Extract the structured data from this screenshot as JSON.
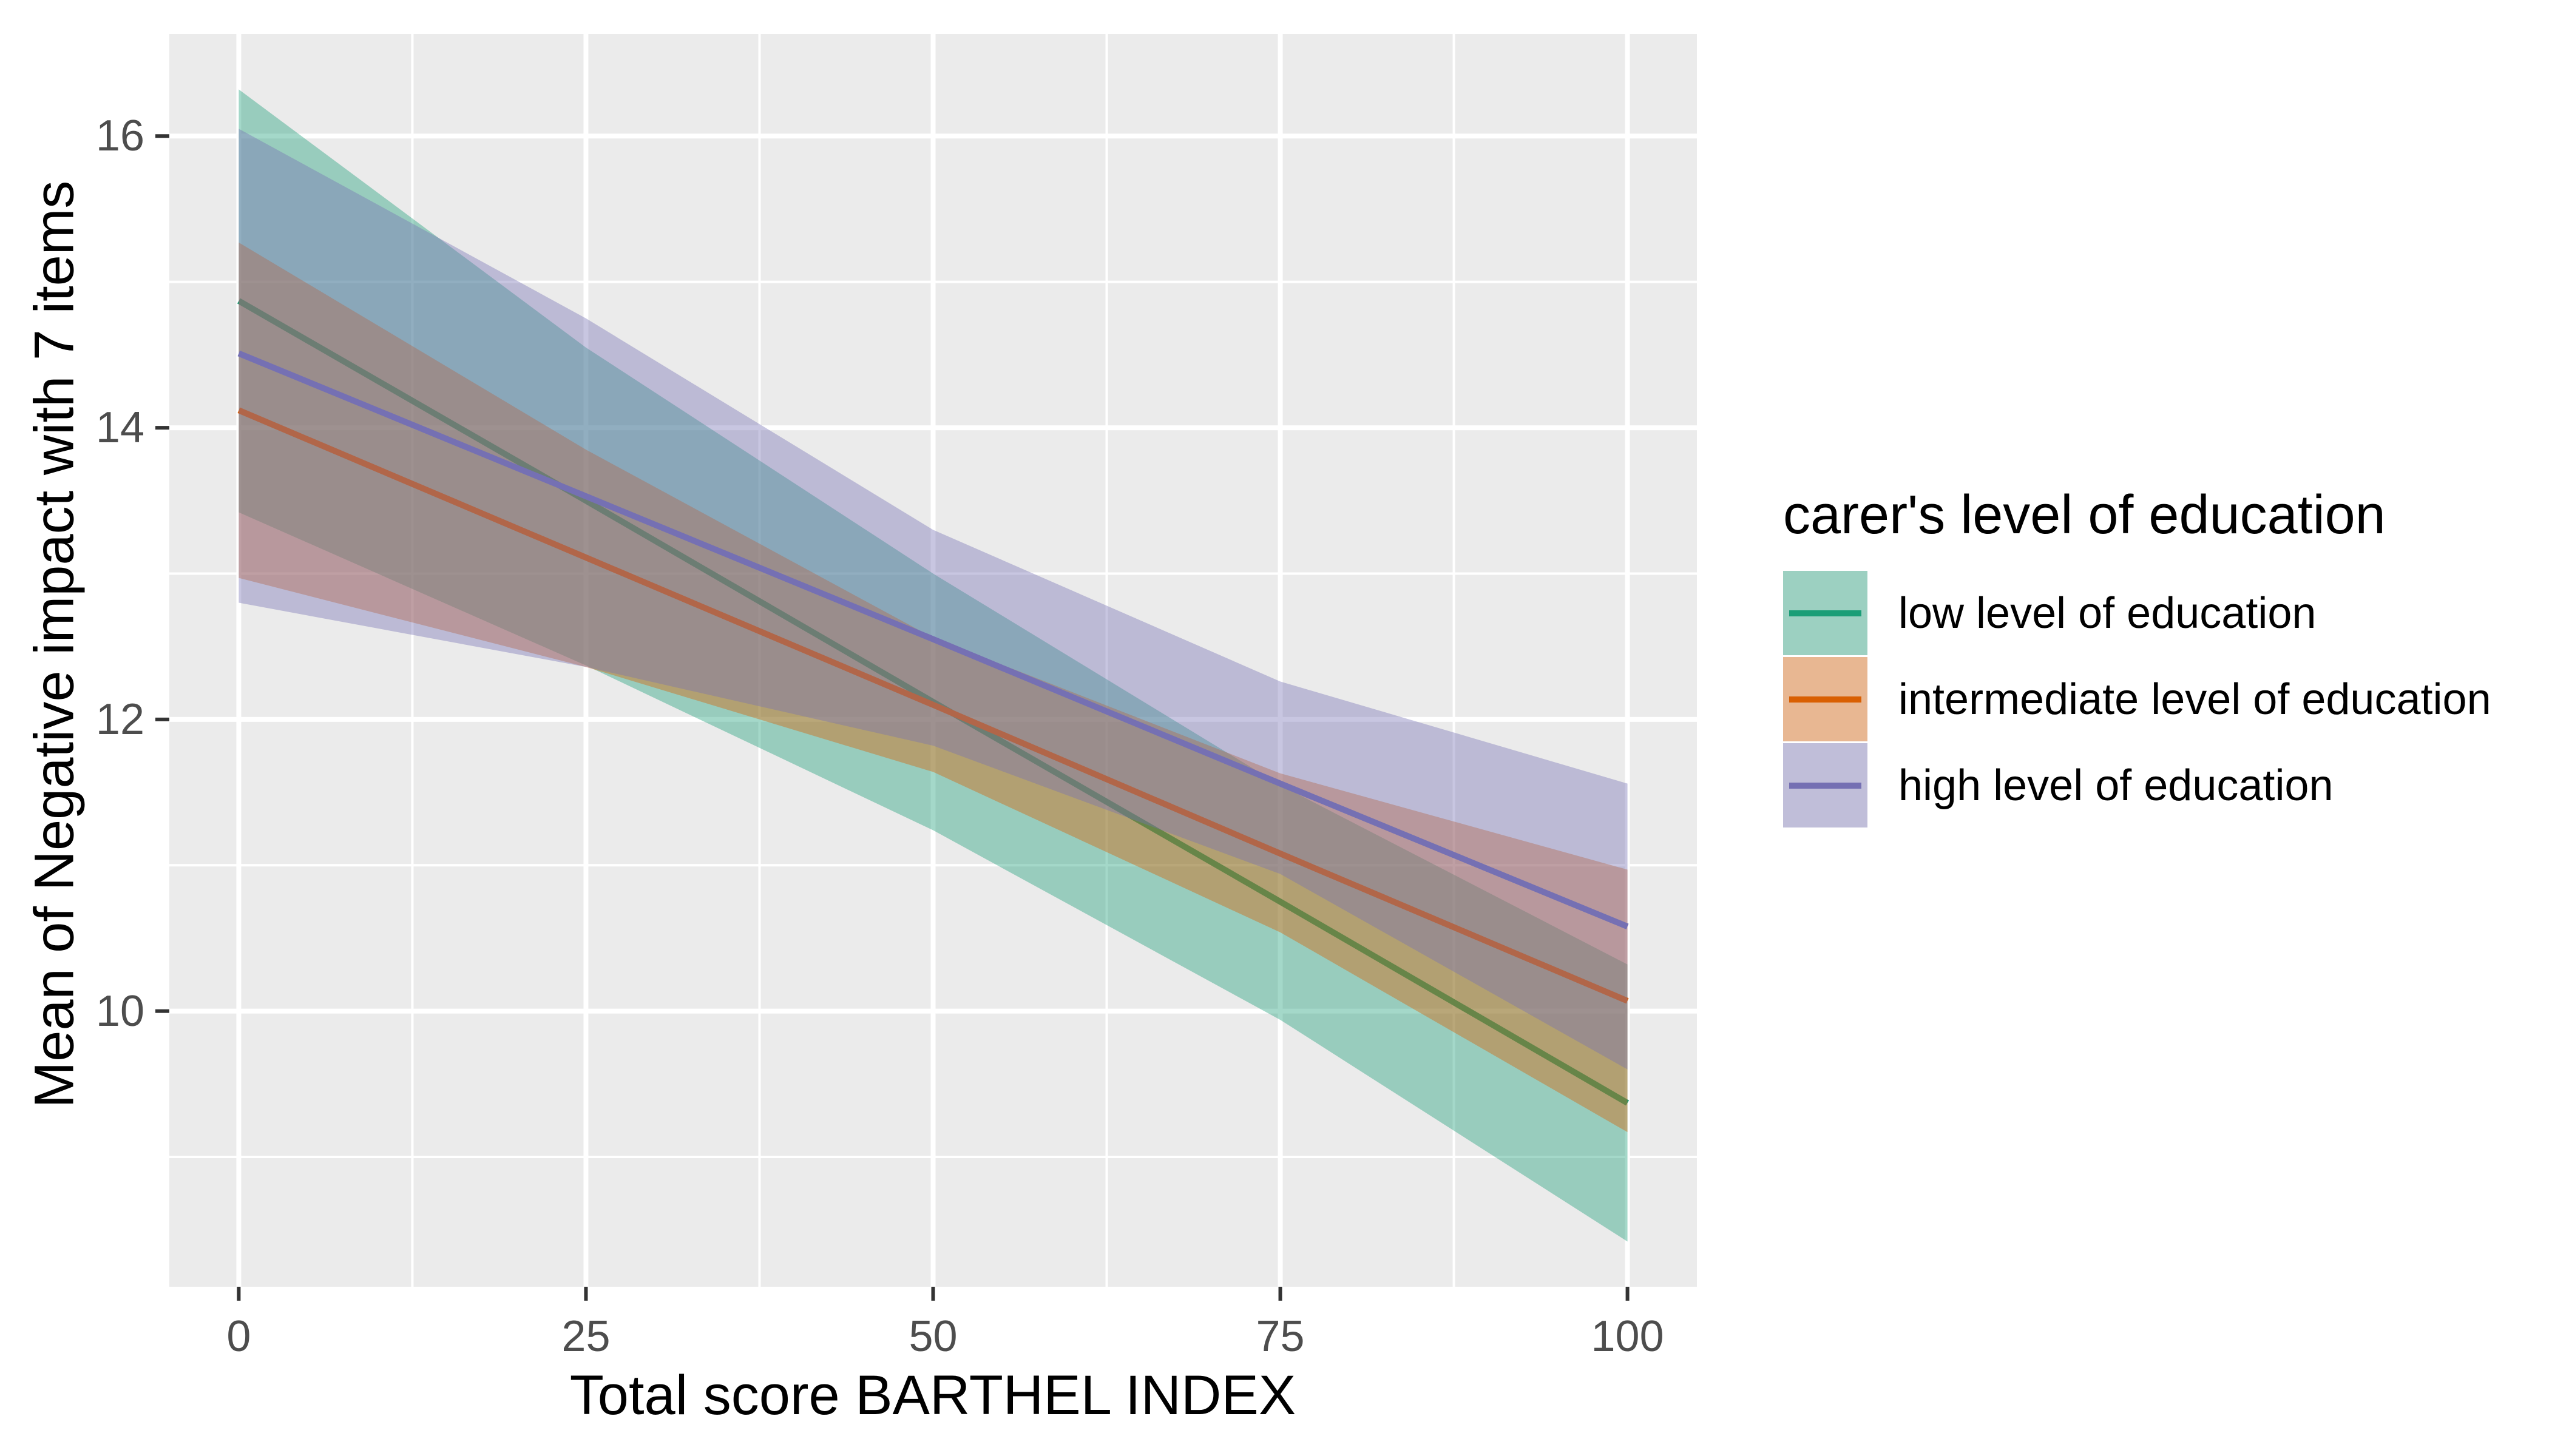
{
  "chart_data": {
    "type": "line",
    "title": "",
    "xlabel": "Total score BARTHEL INDEX",
    "ylabel": "Mean of Negative impact with 7 items",
    "legend_title": "carer's level of education",
    "legend_position": "right",
    "x": [
      0,
      25,
      50,
      75,
      100
    ],
    "series": [
      {
        "name": "low level of education",
        "color": "#1B9E77",
        "fill": "rgba(27,158,119,0.4)",
        "line": [
          14.87,
          13.5,
          12.12,
          10.75,
          9.37
        ],
        "ci_upper": [
          16.32,
          14.55,
          13.0,
          11.55,
          10.32
        ],
        "ci_lower": [
          13.42,
          12.37,
          11.24,
          9.94,
          8.42
        ]
      },
      {
        "name": "intermediate level of education",
        "color": "#D95F02",
        "fill": "rgba(217,95,2,0.4)",
        "line": [
          14.12,
          13.11,
          12.1,
          11.08,
          10.07
        ],
        "ci_upper": [
          15.27,
          13.85,
          12.56,
          11.63,
          10.97
        ],
        "ci_lower": [
          12.97,
          12.36,
          11.64,
          10.54,
          9.17
        ]
      },
      {
        "name": "high level of education",
        "color": "#7570B3",
        "fill": "rgba(117,112,179,0.4)",
        "line": [
          14.51,
          13.53,
          12.55,
          11.56,
          10.58
        ],
        "ci_upper": [
          16.05,
          14.75,
          13.3,
          12.26,
          11.56
        ],
        "ci_lower": [
          12.8,
          12.36,
          11.82,
          10.94,
          9.6
        ]
      }
    ],
    "x_ticks": [
      0,
      25,
      50,
      75,
      100
    ],
    "x_tick_labels": [
      "0",
      "25",
      "50",
      "75",
      "100"
    ],
    "x_minor_ticks": [
      12.5,
      37.5,
      62.5,
      87.5
    ],
    "y_ticks": [
      10,
      12,
      14,
      16
    ],
    "y_tick_labels": [
      "10",
      "12",
      "14",
      "16"
    ],
    "y_minor_ticks": [
      9,
      11,
      13,
      15
    ],
    "xlim": [
      -5,
      105
    ],
    "ylim": [
      8.11,
      16.7
    ],
    "grid": "on",
    "panel_background": "#EBEBEB",
    "grid_color": "#FFFFFF",
    "tick_color": "#333333",
    "tick_label_color": "#4D4D4D"
  }
}
